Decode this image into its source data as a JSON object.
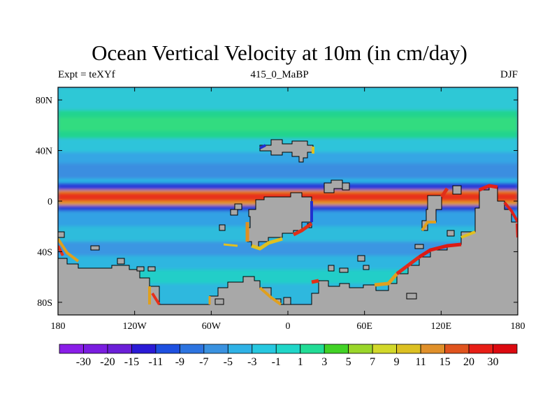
{
  "header": {
    "title": "Ocean Vertical Velocity at 10m (in cm/day)",
    "left": "Expt = teXYf",
    "center": "415_0_MaBP",
    "right": "DJF"
  },
  "axes": {
    "x_ticks": [
      {
        "value": -180,
        "label": "180"
      },
      {
        "value": -120,
        "label": "120W"
      },
      {
        "value": -60,
        "label": "60W"
      },
      {
        "value": 0,
        "label": "0"
      },
      {
        "value": 60,
        "label": "60E"
      },
      {
        "value": 120,
        "label": "120E"
      },
      {
        "value": 180,
        "label": "180"
      }
    ],
    "y_ticks": [
      {
        "value": 80,
        "label": "80N"
      },
      {
        "value": 40,
        "label": "40N"
      },
      {
        "value": 0,
        "label": "0"
      },
      {
        "value": -40,
        "label": "40S"
      },
      {
        "value": -80,
        "label": "80S"
      }
    ],
    "xlim": [
      -180,
      180
    ],
    "ylim": [
      -90,
      90
    ]
  },
  "colorbar": {
    "labels": [
      "-30",
      "-20",
      "-15",
      "-11",
      "-9",
      "-7",
      "-5",
      "-3",
      "-1",
      "1",
      "3",
      "5",
      "7",
      "9",
      "11",
      "15",
      "20",
      "30"
    ],
    "colors": [
      "#8a1ee8",
      "#7a1de0",
      "#6b1fd8",
      "#2b1bd6",
      "#1e50e0",
      "#2d74e0",
      "#3a92e0",
      "#2fb2e6",
      "#27c8e0",
      "#20d6c8",
      "#22dc96",
      "#42d226",
      "#9ad62a",
      "#d2d82a",
      "#dcc022",
      "#e0902a",
      "#e0541e",
      "#e81e16",
      "#dc0a10"
    ]
  },
  "map": {
    "ocean_color": "#3a8fe0",
    "land_color": "#a8a8a8"
  }
}
